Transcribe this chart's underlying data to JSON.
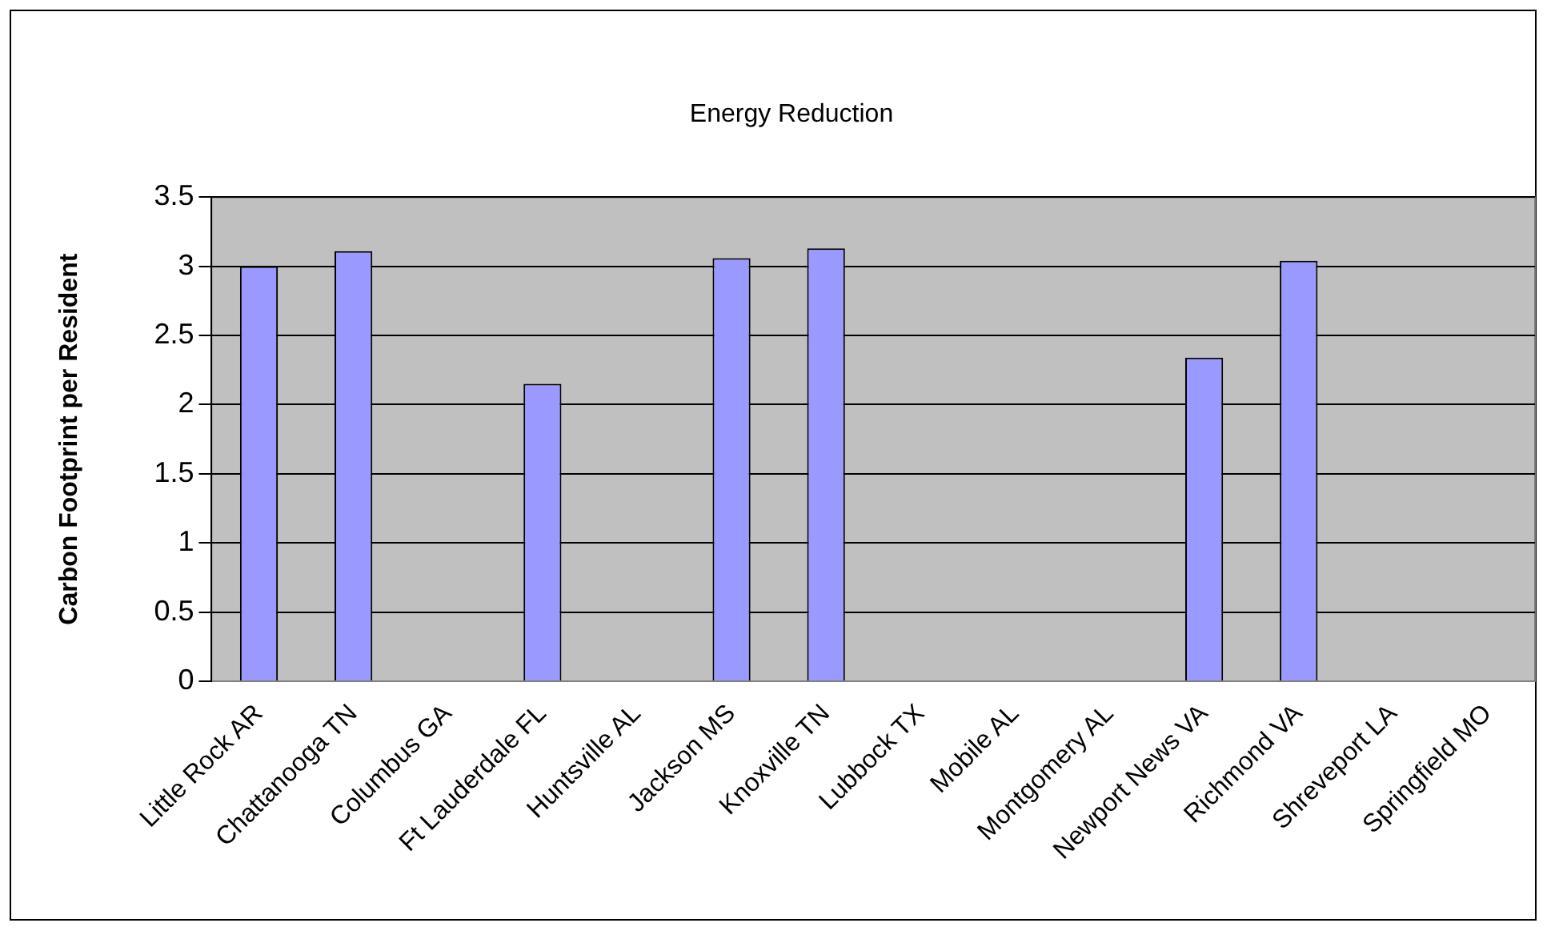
{
  "chart_data": {
    "type": "bar",
    "title": "Energy Reduction",
    "ylabel": "Carbon Footprint per Resident",
    "categories": [
      "Little Rock AR",
      "Chattanooga TN",
      "Columbus GA",
      "Ft Lauderdale FL",
      "Huntsville AL",
      "Jackson MS",
      "Knoxville TN",
      "Lubbock TX",
      "Mobile AL",
      "Montgomery AL",
      "Newport News VA",
      "Richmond VA",
      "Shreveport LA",
      "Springfield MO"
    ],
    "values": [
      3.0,
      3.11,
      null,
      2.15,
      null,
      3.06,
      3.13,
      null,
      null,
      null,
      2.34,
      3.04,
      null,
      null
    ],
    "color": "#9999ff",
    "ylim": [
      0,
      3.5
    ],
    "yticks": [
      0,
      0.5,
      1,
      1.5,
      2,
      2.5,
      3,
      3.5
    ],
    "grid": "y"
  }
}
